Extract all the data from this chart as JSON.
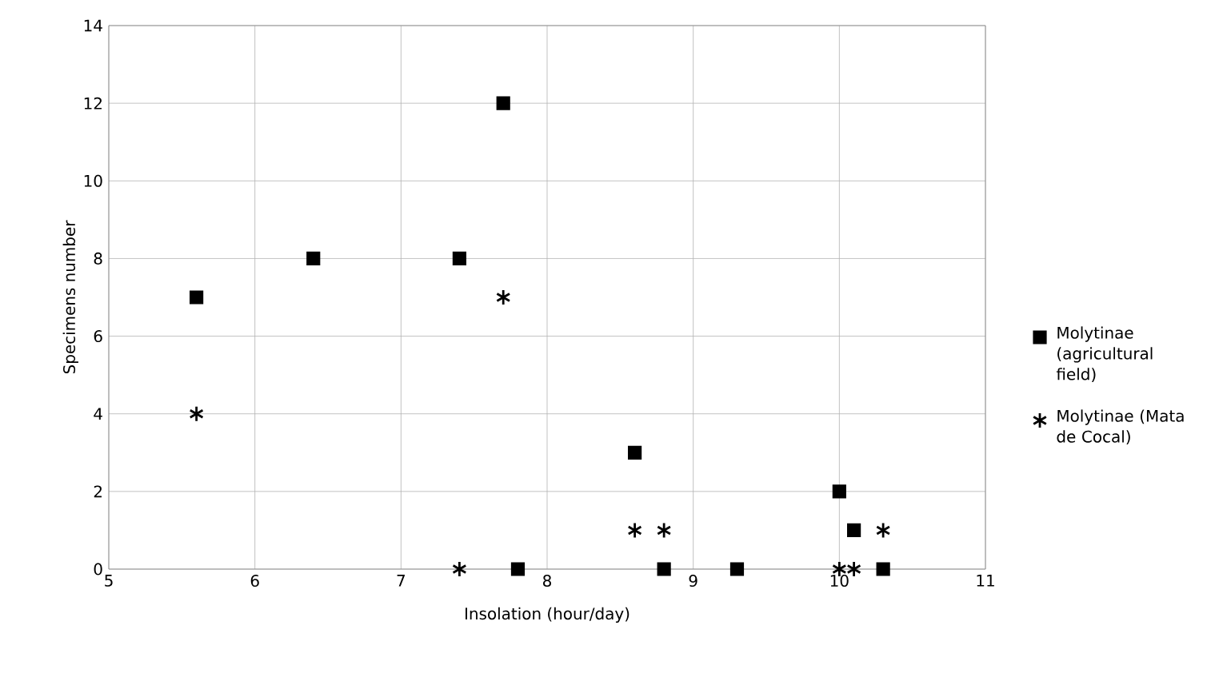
{
  "chart_data": {
    "type": "scatter",
    "xlabel": "Insolation (hour/day)",
    "ylabel": "Specimens number",
    "xlim": [
      5,
      11
    ],
    "xticks": [
      5,
      6,
      7,
      8,
      9,
      10,
      11
    ],
    "ylim": [
      0,
      14
    ],
    "yticks": [
      0,
      2,
      4,
      6,
      8,
      10,
      12,
      14
    ],
    "grid": true,
    "legend": "right",
    "series": [
      {
        "name": "Molytinae (agricultural field)",
        "color": "#000000",
        "marker": "square",
        "x": [
          5.6,
          6.4,
          7.4,
          7.7,
          7.8,
          8.6,
          8.8,
          9.3,
          10.0,
          10.1,
          10.3
        ],
        "values": [
          7,
          8,
          8,
          12,
          0,
          3,
          0,
          0,
          2,
          1,
          0
        ]
      },
      {
        "name": "Molytinae (Mata de Cocal)",
        "color": "#000000",
        "marker": "cross",
        "x": [
          5.6,
          7.4,
          7.7,
          8.6,
          8.8,
          10.0,
          10.1,
          10.3
        ],
        "values": [
          4,
          0,
          7,
          1,
          1,
          0,
          0,
          1
        ]
      }
    ]
  }
}
